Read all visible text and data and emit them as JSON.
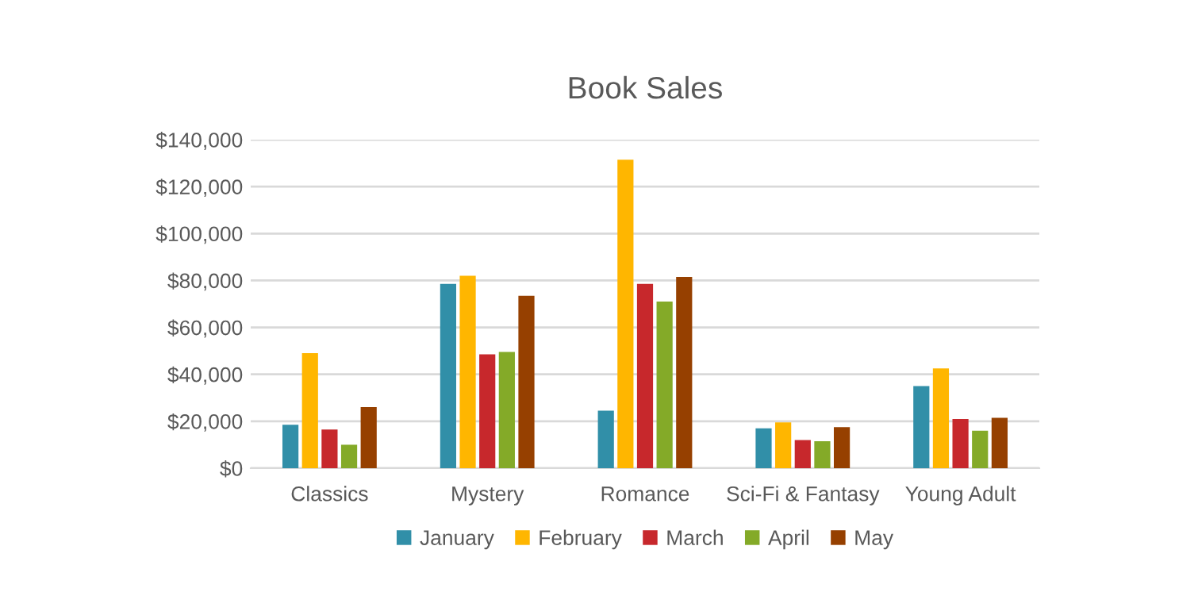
{
  "chart_data": {
    "type": "bar",
    "title": "Book Sales",
    "categories": [
      "Classics",
      "Mystery",
      "Romance",
      "Sci-Fi & Fantasy",
      "Young Adult"
    ],
    "series": [
      {
        "name": "January",
        "color": "#318fa8",
        "values": [
          18500,
          78500,
          24500,
          17000,
          35000
        ]
      },
      {
        "name": "February",
        "color": "#ffb600",
        "values": [
          49000,
          82000,
          131500,
          19500,
          42500
        ]
      },
      {
        "name": "March",
        "color": "#c7282c",
        "values": [
          16500,
          48500,
          78500,
          12000,
          21000
        ]
      },
      {
        "name": "April",
        "color": "#84aa28",
        "values": [
          10000,
          49500,
          71000,
          11500,
          16000
        ]
      },
      {
        "name": "May",
        "color": "#964000",
        "values": [
          26000,
          73500,
          81500,
          17500,
          21500
        ]
      }
    ],
    "ylim": [
      0,
      140000
    ],
    "yticks": [
      {
        "value": 0,
        "label": "$0"
      },
      {
        "value": 20000,
        "label": "$20,000"
      },
      {
        "value": 40000,
        "label": "$40,000"
      },
      {
        "value": 60000,
        "label": "$60,000"
      },
      {
        "value": 80000,
        "label": "$80,000"
      },
      {
        "value": 100000,
        "label": "$100,000"
      },
      {
        "value": 120000,
        "label": "$120,000"
      },
      {
        "value": 140000,
        "label": "$140,000"
      }
    ],
    "grid": "y",
    "legend": "bottom"
  }
}
